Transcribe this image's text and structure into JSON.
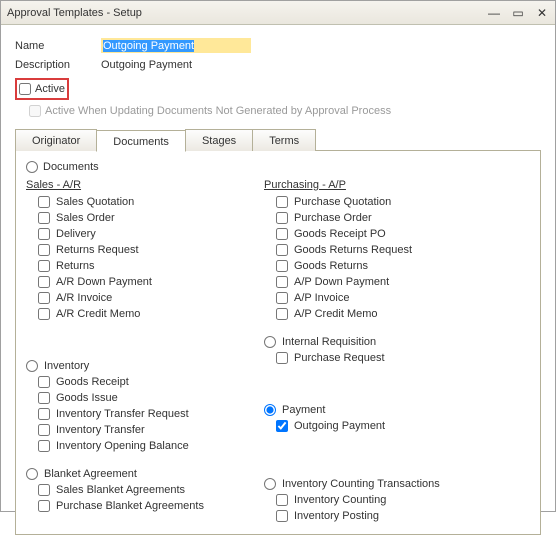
{
  "window": {
    "title": "Approval Templates - Setup"
  },
  "form": {
    "name_label": "Name",
    "name_value": "Outgoing Payment",
    "desc_label": "Description",
    "desc_value": "Outgoing Payment",
    "active_label": "Active",
    "active_checked": false,
    "active_when_label": "Active When Updating Documents Not Generated by Approval Process",
    "active_when_checked": false
  },
  "tabs": {
    "items": [
      "Originator",
      "Documents",
      "Stages",
      "Terms"
    ],
    "active_index": 1
  },
  "documents": {
    "top_radio_label": "Documents",
    "sales": {
      "title": "Sales - A/R",
      "items": [
        {
          "label": "Sales Quotation",
          "checked": false
        },
        {
          "label": "Sales Order",
          "checked": false
        },
        {
          "label": "Delivery",
          "checked": false
        },
        {
          "label": "Returns Request",
          "checked": false
        },
        {
          "label": "Returns",
          "checked": false
        },
        {
          "label": "A/R Down Payment",
          "checked": false
        },
        {
          "label": "A/R Invoice",
          "checked": false
        },
        {
          "label": "A/R Credit Memo",
          "checked": false
        }
      ]
    },
    "purchasing": {
      "title": "Purchasing - A/P",
      "items": [
        {
          "label": "Purchase Quotation",
          "checked": false
        },
        {
          "label": "Purchase Order",
          "checked": false
        },
        {
          "label": "Goods Receipt PO",
          "checked": false
        },
        {
          "label": "Goods Returns Request",
          "checked": false
        },
        {
          "label": "Goods Returns",
          "checked": false
        },
        {
          "label": "A/P Down Payment",
          "checked": false
        },
        {
          "label": "A/P Invoice",
          "checked": false
        },
        {
          "label": "A/P Credit Memo",
          "checked": false
        }
      ]
    },
    "internal_req": {
      "radio_label": "Internal Requisition",
      "items": [
        {
          "label": "Purchase Request",
          "checked": false
        }
      ]
    },
    "inventory": {
      "radio_label": "Inventory",
      "items": [
        {
          "label": "Goods Receipt",
          "checked": false
        },
        {
          "label": "Goods Issue",
          "checked": false
        },
        {
          "label": "Inventory Transfer Request",
          "checked": false
        },
        {
          "label": "Inventory Transfer",
          "checked": false
        },
        {
          "label": "Inventory Opening Balance",
          "checked": false
        }
      ]
    },
    "payment": {
      "radio_label": "Payment",
      "radio_checked": true,
      "items": [
        {
          "label": "Outgoing Payment",
          "checked": true
        }
      ]
    },
    "blanket": {
      "radio_label": "Blanket Agreement",
      "items": [
        {
          "label": "Sales Blanket Agreements",
          "checked": false
        },
        {
          "label": "Purchase Blanket Agreements",
          "checked": false
        }
      ]
    },
    "counting": {
      "radio_label": "Inventory Counting Transactions",
      "items": [
        {
          "label": "Inventory Counting",
          "checked": false
        },
        {
          "label": "Inventory Posting",
          "checked": false
        }
      ]
    }
  },
  "colors": {
    "highlight_bg": "#ffe899",
    "highlight_border": "#d93c3c",
    "panel_border": "#b4b098",
    "selection_text": "#0a3a9e"
  }
}
